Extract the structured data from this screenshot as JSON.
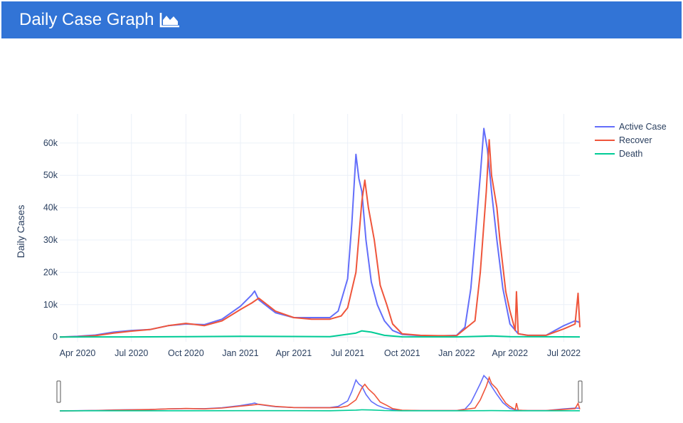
{
  "header": {
    "title": "Daily Case Graph",
    "icon": "area-chart-icon"
  },
  "colors": {
    "header_bg": "#3274d6",
    "active": "#636efa",
    "recover": "#ef553b",
    "death": "#00cc96",
    "grid": "#ebf0f8"
  },
  "chart_data": {
    "type": "line",
    "title": "",
    "xlabel": "",
    "ylabel": "Daily Cases",
    "xlim": [
      "2020-03-02",
      "2022-07-28"
    ],
    "ylim": [
      -1500,
      69000
    ],
    "grid": true,
    "legend_position": "top-right",
    "rangeslider": true,
    "x_ticks": [
      {
        "date": "2020-04-01",
        "label": "Apr 2020"
      },
      {
        "date": "2020-07-01",
        "label": "Jul 2020"
      },
      {
        "date": "2020-10-01",
        "label": "Oct 2020"
      },
      {
        "date": "2021-01-01",
        "label": "Jan 2021"
      },
      {
        "date": "2021-04-01",
        "label": "Apr 2021"
      },
      {
        "date": "2021-07-01",
        "label": "Jul 2021"
      },
      {
        "date": "2021-10-01",
        "label": "Oct 2021"
      },
      {
        "date": "2022-01-01",
        "label": "Jan 2022"
      },
      {
        "date": "2022-04-01",
        "label": "Apr 2022"
      },
      {
        "date": "2022-07-01",
        "label": "Jul 2022"
      }
    ],
    "y_ticks": [
      {
        "value": 0,
        "label": "0"
      },
      {
        "value": 10000,
        "label": "10k"
      },
      {
        "value": 20000,
        "label": "20k"
      },
      {
        "value": 30000,
        "label": "30k"
      },
      {
        "value": 40000,
        "label": "40k"
      },
      {
        "value": 50000,
        "label": "50k"
      },
      {
        "value": 60000,
        "label": "60k"
      }
    ],
    "series": [
      {
        "name": "Active Case",
        "points": [
          [
            "2020-03-02",
            0
          ],
          [
            "2020-04-01",
            200
          ],
          [
            "2020-05-01",
            600
          ],
          [
            "2020-06-01",
            1500
          ],
          [
            "2020-07-01",
            2000
          ],
          [
            "2020-08-01",
            2300
          ],
          [
            "2020-09-01",
            3500
          ],
          [
            "2020-10-01",
            4000
          ],
          [
            "2020-11-01",
            3800
          ],
          [
            "2020-12-01",
            5500
          ],
          [
            "2021-01-01",
            9500
          ],
          [
            "2021-01-20",
            13000
          ],
          [
            "2021-01-25",
            14200
          ],
          [
            "2021-02-01",
            11500
          ],
          [
            "2021-02-15",
            9500
          ],
          [
            "2021-03-01",
            7500
          ],
          [
            "2021-04-01",
            6000
          ],
          [
            "2021-05-01",
            6000
          ],
          [
            "2021-06-01",
            6000
          ],
          [
            "2021-06-15",
            8000
          ],
          [
            "2021-07-01",
            18000
          ],
          [
            "2021-07-08",
            35000
          ],
          [
            "2021-07-15",
            56500
          ],
          [
            "2021-07-20",
            49000
          ],
          [
            "2021-07-25",
            45000
          ],
          [
            "2021-08-01",
            30000
          ],
          [
            "2021-08-10",
            17000
          ],
          [
            "2021-08-20",
            10000
          ],
          [
            "2021-09-01",
            5000
          ],
          [
            "2021-09-15",
            2000
          ],
          [
            "2021-10-01",
            800
          ],
          [
            "2021-11-01",
            400
          ],
          [
            "2021-12-01",
            300
          ],
          [
            "2022-01-01",
            500
          ],
          [
            "2022-01-15",
            3000
          ],
          [
            "2022-01-25",
            15000
          ],
          [
            "2022-02-01",
            30000
          ],
          [
            "2022-02-10",
            50000
          ],
          [
            "2022-02-16",
            64500
          ],
          [
            "2022-02-22",
            58000
          ],
          [
            "2022-03-01",
            45000
          ],
          [
            "2022-03-10",
            30000
          ],
          [
            "2022-03-20",
            15000
          ],
          [
            "2022-04-01",
            4000
          ],
          [
            "2022-04-15",
            1000
          ],
          [
            "2022-05-01",
            500
          ],
          [
            "2022-06-01",
            500
          ],
          [
            "2022-07-01",
            3500
          ],
          [
            "2022-07-20",
            5000
          ],
          [
            "2022-07-28",
            4500
          ]
        ]
      },
      {
        "name": "Recover",
        "points": [
          [
            "2020-03-02",
            0
          ],
          [
            "2020-04-01",
            100
          ],
          [
            "2020-05-01",
            400
          ],
          [
            "2020-06-01",
            1200
          ],
          [
            "2020-07-01",
            1800
          ],
          [
            "2020-08-01",
            2300
          ],
          [
            "2020-09-01",
            3500
          ],
          [
            "2020-10-01",
            4200
          ],
          [
            "2020-11-01",
            3500
          ],
          [
            "2020-12-01",
            5000
          ],
          [
            "2021-01-01",
            8500
          ],
          [
            "2021-01-20",
            10500
          ],
          [
            "2021-02-01",
            12000
          ],
          [
            "2021-02-15",
            10000
          ],
          [
            "2021-03-01",
            8000
          ],
          [
            "2021-04-01",
            6000
          ],
          [
            "2021-05-01",
            5500
          ],
          [
            "2021-06-01",
            5500
          ],
          [
            "2021-06-20",
            6500
          ],
          [
            "2021-07-01",
            9000
          ],
          [
            "2021-07-15",
            20000
          ],
          [
            "2021-07-25",
            42000
          ],
          [
            "2021-07-30",
            48500
          ],
          [
            "2021-08-05",
            40000
          ],
          [
            "2021-08-15",
            30000
          ],
          [
            "2021-08-25",
            16000
          ],
          [
            "2021-09-05",
            10000
          ],
          [
            "2021-09-15",
            4000
          ],
          [
            "2021-10-01",
            1000
          ],
          [
            "2021-11-01",
            500
          ],
          [
            "2021-12-01",
            400
          ],
          [
            "2022-01-01",
            400
          ],
          [
            "2022-02-01",
            5000
          ],
          [
            "2022-02-10",
            20000
          ],
          [
            "2022-02-20",
            45000
          ],
          [
            "2022-02-25",
            61000
          ],
          [
            "2022-03-01",
            50000
          ],
          [
            "2022-03-10",
            40000
          ],
          [
            "2022-03-15",
            30000
          ],
          [
            "2022-03-25",
            14000
          ],
          [
            "2022-04-01",
            8000
          ],
          [
            "2022-04-10",
            2000
          ],
          [
            "2022-04-12",
            14000
          ],
          [
            "2022-04-15",
            1000
          ],
          [
            "2022-05-01",
            500
          ],
          [
            "2022-06-01",
            500
          ],
          [
            "2022-07-01",
            2500
          ],
          [
            "2022-07-20",
            4000
          ],
          [
            "2022-07-25",
            13500
          ],
          [
            "2022-07-28",
            3000
          ]
        ]
      },
      {
        "name": "Death",
        "points": [
          [
            "2020-03-02",
            0
          ],
          [
            "2020-07-01",
            30
          ],
          [
            "2020-10-01",
            100
          ],
          [
            "2021-01-01",
            200
          ],
          [
            "2021-04-01",
            150
          ],
          [
            "2021-06-01",
            100
          ],
          [
            "2021-07-15",
            1200
          ],
          [
            "2021-07-25",
            1900
          ],
          [
            "2021-08-10",
            1500
          ],
          [
            "2021-09-01",
            500
          ],
          [
            "2021-10-01",
            50
          ],
          [
            "2022-01-01",
            20
          ],
          [
            "2022-02-15",
            250
          ],
          [
            "2022-03-01",
            300
          ],
          [
            "2022-04-01",
            100
          ],
          [
            "2022-07-28",
            30
          ]
        ]
      }
    ]
  }
}
